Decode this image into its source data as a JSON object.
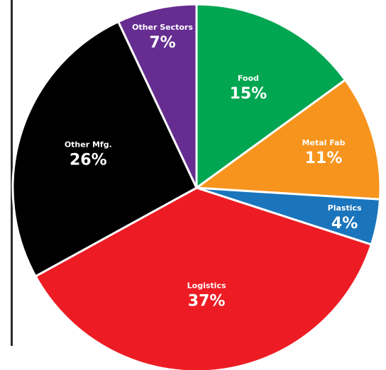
{
  "chart_data": {
    "type": "pie",
    "title": "",
    "slices": [
      {
        "name": "Food",
        "value": 15,
        "label": "15%",
        "color": "#00A651"
      },
      {
        "name": "Metal Fab",
        "value": 11,
        "label": "11%",
        "color": "#F7941D"
      },
      {
        "name": "Plastics",
        "value": 4,
        "label": "4%",
        "color": "#1B75BC"
      },
      {
        "name": "Logistics",
        "value": 37,
        "label": "37%",
        "color": "#ED1C24"
      },
      {
        "name": "Other Mfg.",
        "value": 26,
        "label": "26%",
        "color": "#000000"
      },
      {
        "name": "Other Sectors",
        "value": 7,
        "label": "7%",
        "color": "#662D91"
      }
    ],
    "legend": "none",
    "start_angle_deg": 0,
    "direction": "clockwise"
  }
}
